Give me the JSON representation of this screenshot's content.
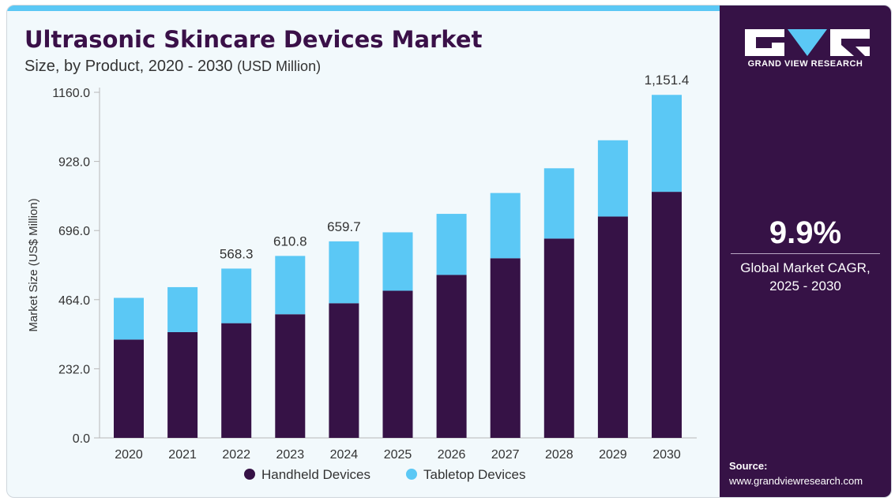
{
  "header": {
    "title": "Ultrasonic Skincare Devices Market",
    "subtitle": "Size, by Product, 2020 - 2030",
    "subtitle_unit": "(USD Million)"
  },
  "sidebar": {
    "brand": "GRAND VIEW RESEARCH",
    "cagr_value": "9.9%",
    "cagr_label_line1": "Global Market CAGR,",
    "cagr_label_line2": "2025 - 2030",
    "source_label": "Source:",
    "source_url": "www.grandviewresearch.com"
  },
  "colors": {
    "handheld": "#361246",
    "tabletop": "#5bc8f5",
    "sidebar": "#361246",
    "accent": "#5bc8f5"
  },
  "chart_data": {
    "type": "bar",
    "stacked": true,
    "categories": [
      "2020",
      "2021",
      "2022",
      "2023",
      "2024",
      "2025",
      "2026",
      "2027",
      "2028",
      "2029",
      "2030"
    ],
    "series": [
      {
        "name": "Handheld Devices",
        "values": [
          330,
          355,
          385,
          415,
          452,
          494,
          547,
          603,
          669,
          743,
          826
        ]
      },
      {
        "name": "Tabletop Devices",
        "values": [
          140,
          151,
          183.3,
          195.8,
          207.7,
          196,
          205,
          219,
          236,
          256,
          325.4
        ]
      }
    ],
    "totals_labels": [
      "",
      "",
      "568.3",
      "610.8",
      "659.7",
      "",
      "",
      "",
      "",
      "",
      "1,151.4"
    ],
    "ylabel": "Market Size (US$ Million)",
    "xlabel": "",
    "ylim": [
      0,
      1160
    ],
    "yticks": [
      "0.0",
      "232.0",
      "464.0",
      "696.0",
      "928.0",
      "1160.0"
    ],
    "gridlines": false,
    "legend": "bottom-center"
  }
}
